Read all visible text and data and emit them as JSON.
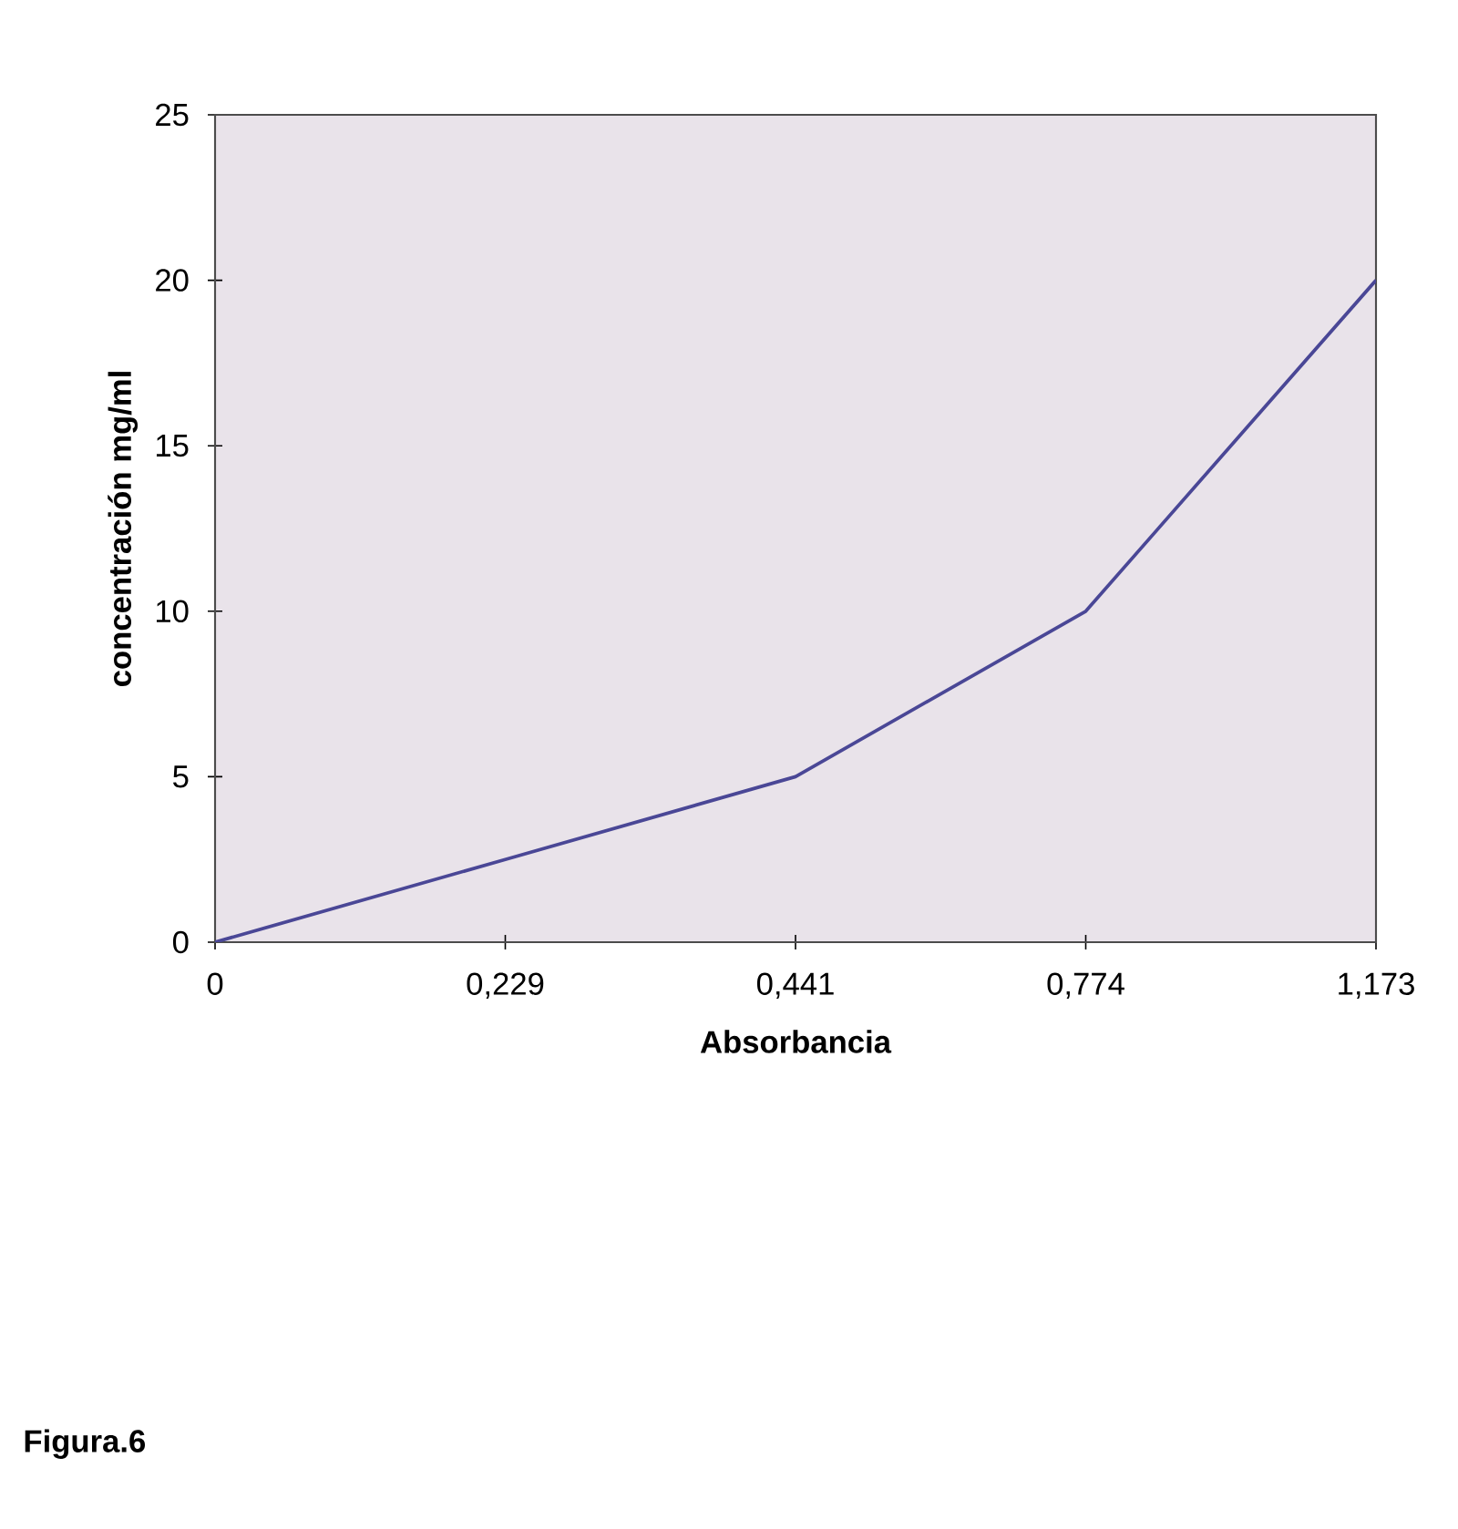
{
  "chart_data": {
    "type": "line",
    "xlabel": "Absorbancia",
    "ylabel": "concentración mg/ml",
    "categories": [
      "0",
      "0,229",
      "0,441",
      "0,774",
      "1,173"
    ],
    "series": [
      {
        "color": "#4a4796",
        "values": [
          0,
          2.5,
          5,
          10,
          20
        ]
      }
    ],
    "ylim": [
      0,
      25
    ],
    "yticks": [
      0,
      5,
      10,
      15,
      20,
      25
    ],
    "grid": false,
    "marker": "none",
    "line_style": "solid",
    "annotations": [
      "Figura.6"
    ]
  }
}
